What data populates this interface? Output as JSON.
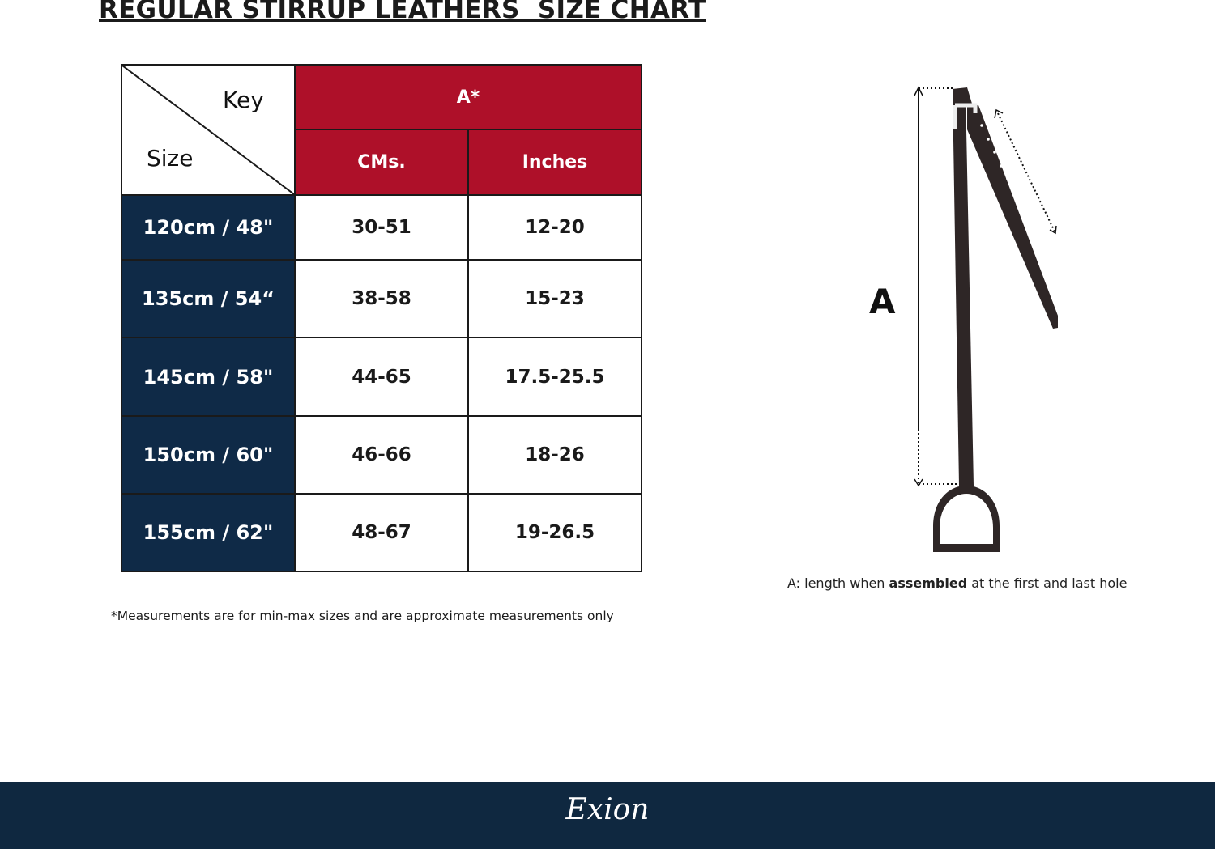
{
  "title": "REGULAR STIRRUP LEATHERS  SIZE CHART",
  "table": {
    "key_label": "Key",
    "size_label": "Size",
    "group_header": "A*",
    "columns": [
      "CMs.",
      "Inches"
    ],
    "rows": [
      {
        "size": "120cm / 48\"",
        "cms": "30-51",
        "inches": "12-20"
      },
      {
        "size": "135cm / 54“",
        "cms": "38-58",
        "inches": "15-23"
      },
      {
        "size": "145cm / 58\"",
        "cms": "44-65",
        "inches": "17.5-25.5"
      },
      {
        "size": "150cm / 60\"",
        "cms": "46-66",
        "inches": "18-26"
      },
      {
        "size": "155cm / 62\"",
        "cms": "48-67",
        "inches": "19-26.5"
      }
    ]
  },
  "note": "*Measurements are for min-max sizes and are approximate measurements only",
  "diagram": {
    "label": "A",
    "caption_pre": "A: length when ",
    "caption_bold": "assembled",
    "caption_post": " at the first and last hole"
  },
  "footer": {
    "logo": "Exion"
  },
  "colors": {
    "header_red": "#ae1029",
    "navy": "#0f2a47",
    "leather": "#2e2626"
  }
}
